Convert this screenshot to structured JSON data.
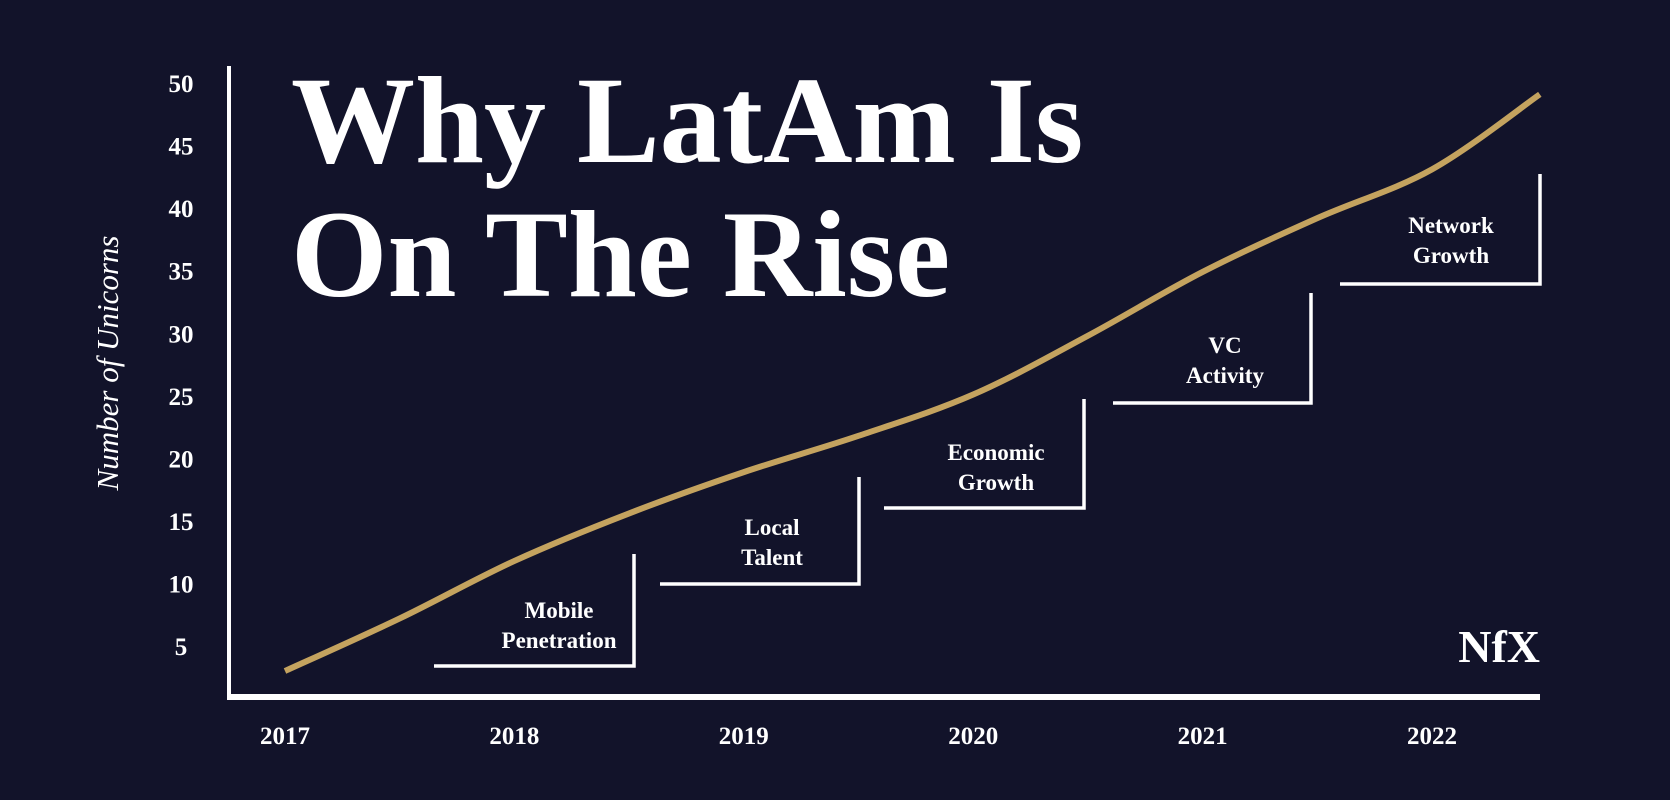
{
  "chart_data": {
    "type": "line",
    "title_lines": [
      "Why LatAm Is",
      "On The Rise"
    ],
    "xlabel": "",
    "ylabel": "Number of Unicorns",
    "x_ticks": [
      "2017",
      "2018",
      "2019",
      "2020",
      "2021",
      "2022"
    ],
    "y_ticks": [
      "5",
      "10",
      "15",
      "20",
      "25",
      "30",
      "35",
      "40",
      "45",
      "50"
    ],
    "xlim": [
      2017,
      2022.5
    ],
    "ylim": [
      0,
      50
    ],
    "grid": false,
    "series": [
      {
        "x": [
          2017,
          2017.5,
          2018,
          2018.5,
          2019,
          2019.5,
          2020,
          2020.5,
          2021,
          2021.5,
          2022,
          2022.47
        ],
        "y": [
          3,
          7.2,
          11.8,
          15.6,
          18.9,
          21.8,
          25.1,
          29.8,
          34.9,
          39.2,
          43.1,
          49.1
        ],
        "color": "#c4a35f"
      }
    ],
    "annotations": [
      {
        "lines": [
          "Mobile",
          "Penetration"
        ]
      },
      {
        "lines": [
          "Local",
          "Talent"
        ]
      },
      {
        "lines": [
          "Economic",
          "Growth"
        ]
      },
      {
        "lines": [
          "VC",
          "Activity"
        ]
      },
      {
        "lines": [
          "Network",
          "Growth"
        ]
      }
    ],
    "logo": "NfX",
    "colors": {
      "background": "#12132a",
      "line": "#c4a35f",
      "text": "#ffffff"
    }
  }
}
